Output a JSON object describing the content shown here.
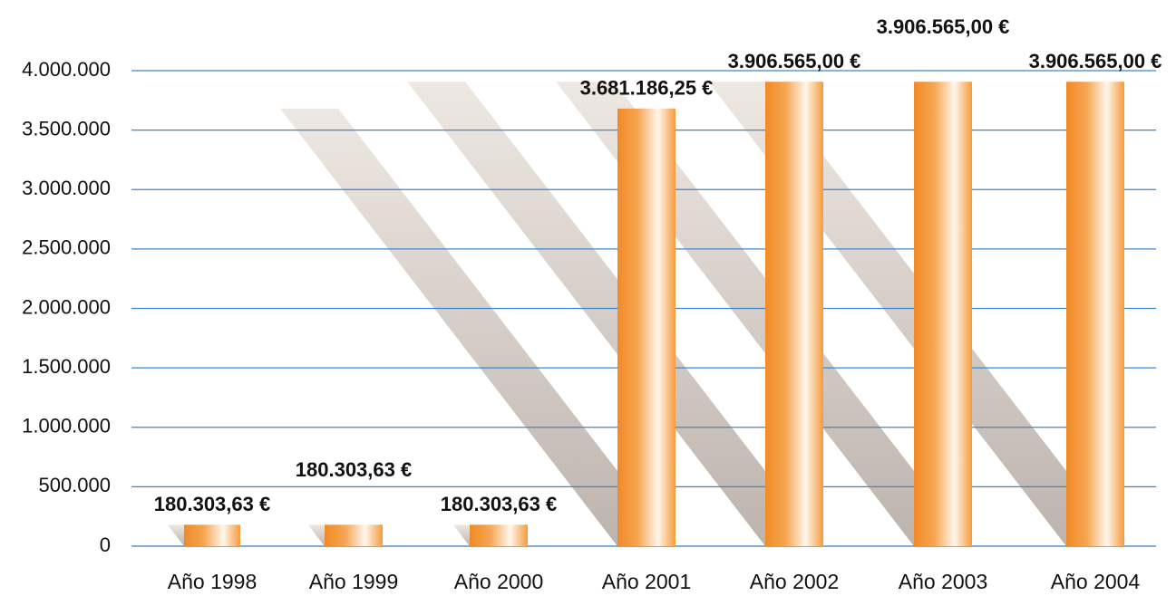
{
  "chart_data": {
    "type": "bar",
    "categories": [
      "Año 1998",
      "Año 1999",
      "Año 2000",
      "Año 2001",
      "Año 2002",
      "Año 2003",
      "Año 2004"
    ],
    "values": [
      180303.63,
      180303.63,
      180303.63,
      3681186.25,
      3906565.0,
      3906565.0,
      3906565.0
    ],
    "value_labels": [
      "180.303,63 €",
      "180.303,63 €",
      "180.303,63 €",
      "3.681.186,25 €",
      "3.906.565,00 €",
      "3.906.565,00 €",
      "3.906.565,00 €"
    ],
    "color": "#f28c28",
    "ylim": [
      0,
      4000000
    ],
    "yticks": [
      0,
      {
        "value": 500000,
        "label": "500.000"
      },
      {
        "value": 1000000,
        "label": "1.000.000"
      },
      {
        "value": 1500000,
        "label": "1.500.000"
      },
      {
        "value": 2000000,
        "label": "2.000.000"
      },
      {
        "value": 2500000,
        "label": "2.500.000"
      },
      {
        "value": 3000000,
        "label": "3.000.000"
      },
      {
        "value": 3500000,
        "label": "3.500.000"
      },
      {
        "value": 4000000,
        "label": "4.000.000"
      }
    ],
    "grid": true
  }
}
